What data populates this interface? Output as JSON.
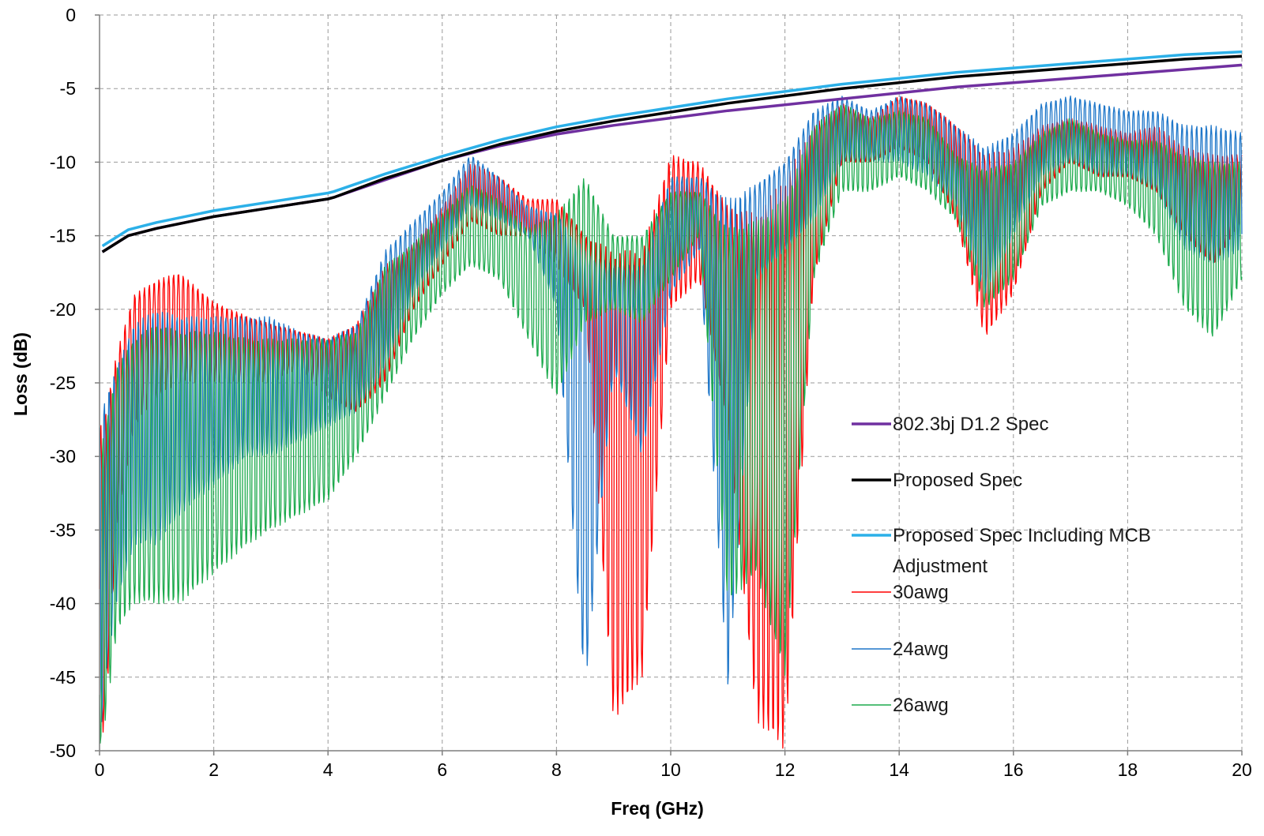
{
  "chart_data": {
    "type": "line",
    "xlabel": "Freq (GHz)",
    "ylabel": "Loss (dB)",
    "xlim": [
      0,
      20
    ],
    "ylim": [
      -50,
      0
    ],
    "xticks": [
      0,
      2,
      4,
      6,
      8,
      10,
      12,
      14,
      16,
      18,
      20
    ],
    "yticks": [
      0,
      -5,
      -10,
      -15,
      -20,
      -25,
      -30,
      -35,
      -40,
      -45,
      -50
    ],
    "grid": true,
    "legend_position": "right",
    "series": [
      {
        "name": "802.3bj D1.2 Spec",
        "color": "#7030A0",
        "style": "thick",
        "x": [
          0.05,
          0.5,
          1,
          2,
          3,
          4,
          4.1,
          5,
          6,
          7,
          8,
          9,
          10,
          11,
          12,
          13,
          14,
          15,
          16,
          17,
          18,
          19,
          20
        ],
        "y": [
          -16.1,
          -15.0,
          -14.5,
          -13.7,
          -13.1,
          -12.5,
          -12.4,
          -11.2,
          -9.9,
          -8.9,
          -8.1,
          -7.5,
          -7.0,
          -6.5,
          -6.1,
          -5.7,
          -5.3,
          -4.9,
          -4.6,
          -4.3,
          -4.0,
          -3.7,
          -3.4
        ]
      },
      {
        "name": "Proposed Spec",
        "color": "#000000",
        "style": "thick",
        "x": [
          0.05,
          0.5,
          1,
          2,
          3,
          4,
          4.1,
          5,
          6,
          7,
          8,
          9,
          10,
          11,
          12,
          13,
          14,
          15,
          16,
          17,
          18,
          19,
          20
        ],
        "y": [
          -16.1,
          -15.0,
          -14.5,
          -13.7,
          -13.1,
          -12.5,
          -12.4,
          -11.1,
          -9.9,
          -8.8,
          -7.9,
          -7.2,
          -6.6,
          -6.0,
          -5.5,
          -5.0,
          -4.6,
          -4.2,
          -3.9,
          -3.6,
          -3.3,
          -3.0,
          -2.8
        ]
      },
      {
        "name": "Proposed Spec Including MCB Adjustment",
        "color": "#2CB0E8",
        "style": "thick",
        "x": [
          0.05,
          0.5,
          1,
          2,
          3,
          4,
          4.1,
          5,
          6,
          7,
          8,
          9,
          10,
          11,
          12,
          13,
          14,
          15,
          16,
          17,
          18,
          19,
          20
        ],
        "y": [
          -15.7,
          -14.6,
          -14.1,
          -13.3,
          -12.7,
          -12.1,
          -12.0,
          -10.8,
          -9.6,
          -8.5,
          -7.6,
          -6.9,
          -6.3,
          -5.7,
          -5.2,
          -4.7,
          -4.3,
          -3.9,
          -3.6,
          -3.3,
          -3.0,
          -2.7,
          -2.5
        ]
      },
      {
        "name": "30awg",
        "color": "#FF0000",
        "style": "noisy",
        "x": [
          0,
          0.1,
          0.3,
          0.6,
          1,
          1.4,
          2,
          2.6,
          3,
          3.5,
          4,
          4.5,
          5,
          5.5,
          6,
          6.5,
          7,
          7.5,
          8,
          8.5,
          9,
          9.5,
          10,
          10.5,
          11,
          11.5,
          12,
          12.5,
          13,
          13.5,
          14,
          14.5,
          15,
          15.5,
          16,
          16.5,
          17,
          17.5,
          18,
          18.5,
          19,
          19.5,
          20
        ],
        "upper": [
          -28,
          -27,
          -23,
          -19,
          -18,
          -17.5,
          -19.5,
          -20.5,
          -21,
          -21.5,
          -22,
          -21,
          -17,
          -15.5,
          -13,
          -10,
          -11,
          -12.5,
          -12.5,
          -15,
          -16,
          -16,
          -9.5,
          -10,
          -13,
          -13.5,
          -11,
          -7.5,
          -6,
          -7,
          -5.5,
          -6,
          -7.5,
          -9.5,
          -9,
          -7.5,
          -7,
          -7.5,
          -8,
          -7.5,
          -9,
          -9.5,
          -9.5
        ],
        "lower": [
          -50,
          -48,
          -35,
          -28,
          -26,
          -25,
          -25,
          -25,
          -25,
          -24,
          -26,
          -27,
          -25,
          -20,
          -17,
          -14,
          -15,
          -15,
          -17,
          -20,
          -48,
          -45,
          -20,
          -18,
          -28,
          -48,
          -50,
          -18,
          -10,
          -10,
          -9,
          -10,
          -14,
          -22,
          -19,
          -12,
          -10,
          -11,
          -11,
          -12,
          -15,
          -17,
          -14
        ],
        "freq": [
          12,
          12,
          12,
          10,
          8,
          6,
          4
        ]
      },
      {
        "name": "24awg",
        "color": "#1F77C9",
        "style": "noisy",
        "x": [
          0,
          0.1,
          0.3,
          0.6,
          1,
          1.4,
          2,
          2.6,
          3,
          3.5,
          4,
          4.5,
          5,
          5.5,
          6,
          6.5,
          7,
          7.5,
          8,
          8.5,
          9,
          9.5,
          10,
          10.5,
          11,
          11.5,
          12,
          12.5,
          13,
          13.5,
          14,
          14.5,
          15,
          15.5,
          16,
          16.5,
          17,
          17.5,
          18,
          18.5,
          19,
          19.5,
          20
        ],
        "upper": [
          -28,
          -26,
          -24,
          -21,
          -20,
          -20.5,
          -20.5,
          -20.5,
          -20.5,
          -21.5,
          -22,
          -21,
          -16,
          -14,
          -12,
          -9.5,
          -11,
          -13,
          -13.5,
          -16,
          -17,
          -17,
          -11,
          -11,
          -12.5,
          -11.5,
          -10,
          -6.5,
          -5.5,
          -6.5,
          -5.5,
          -6,
          -7.5,
          -9,
          -8,
          -6,
          -5.5,
          -6,
          -6.5,
          -6.5,
          -7.5,
          -7.5,
          -8
        ],
        "lower": [
          -50,
          -45,
          -40,
          -36,
          -36,
          -34,
          -32,
          -30,
          -30,
          -29,
          -28,
          -27,
          -24,
          -19,
          -16,
          -13,
          -14,
          -15,
          -20,
          -46,
          -24,
          -30,
          -19,
          -16,
          -46,
          -18,
          -16,
          -14,
          -10,
          -10,
          -10,
          -11,
          -13,
          -19,
          -15,
          -11,
          -10,
          -11,
          -11,
          -12,
          -16,
          -17,
          -16
        ],
        "freq": [
          12,
          12,
          12,
          10,
          8,
          6,
          4
        ]
      },
      {
        "name": "26awg",
        "color": "#1DAA4D",
        "style": "noisy",
        "x": [
          0,
          0.1,
          0.3,
          0.6,
          1,
          1.4,
          2,
          2.6,
          3,
          3.5,
          4,
          4.5,
          5,
          5.5,
          6,
          6.5,
          7,
          7.5,
          8,
          8.5,
          9,
          9.5,
          10,
          10.5,
          11,
          11.5,
          12,
          12.5,
          13,
          13.5,
          14,
          14.5,
          15,
          15.5,
          16,
          16.5,
          17,
          17.5,
          18,
          18.5,
          19,
          19.5,
          20
        ],
        "upper": [
          -30,
          -28,
          -24,
          -22,
          -21,
          -21.5,
          -21.5,
          -22,
          -22,
          -22,
          -22,
          -21.5,
          -17,
          -15.5,
          -13.5,
          -11.5,
          -12.5,
          -14.5,
          -13.5,
          -11,
          -15,
          -15,
          -12,
          -12,
          -14.5,
          -14,
          -12.5,
          -7.5,
          -6,
          -7,
          -6.5,
          -7,
          -9.5,
          -10.5,
          -10,
          -8,
          -7,
          -8,
          -8.5,
          -8.5,
          -9.5,
          -10,
          -10
        ],
        "lower": [
          -50,
          -48,
          -42,
          -40,
          -40,
          -40,
          -38,
          -36,
          -35,
          -34,
          -33,
          -30,
          -26,
          -22,
          -19,
          -17,
          -18,
          -22,
          -26,
          -21,
          -20,
          -21,
          -18,
          -15,
          -40,
          -38,
          -45,
          -18,
          -12,
          -12,
          -11,
          -12,
          -14,
          -20,
          -18,
          -13,
          -12,
          -12,
          -13,
          -15,
          -20,
          -22,
          -18
        ],
        "freq": [
          12,
          12,
          12,
          10,
          8,
          6,
          4
        ]
      }
    ]
  }
}
